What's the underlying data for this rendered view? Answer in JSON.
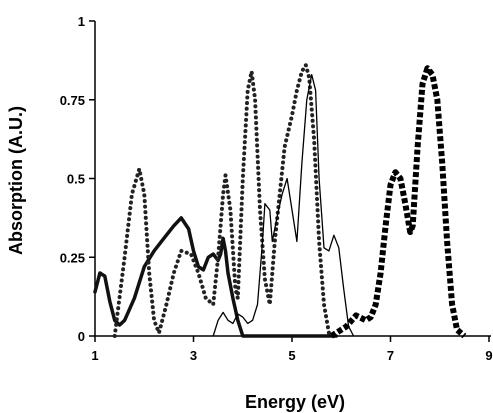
{
  "chart_data": {
    "type": "line",
    "title": "",
    "xlabel": "Energy (eV)",
    "ylabel": "Absorption (A.U.)",
    "xlim": [
      1,
      9
    ],
    "ylim": [
      0,
      1
    ],
    "x_ticks": [
      1,
      3,
      5,
      7,
      9
    ],
    "y_ticks": [
      0,
      0.25,
      0.5,
      0.75,
      1
    ],
    "x_tick_labels": [
      "1",
      "3",
      "5",
      "7",
      "9"
    ],
    "y_tick_labels": [
      "0",
      "0.25",
      "0.5",
      "0.75",
      "1"
    ],
    "grid": false,
    "legend": "none",
    "series": [
      {
        "style": "thick-line",
        "color": "#111111",
        "points": [
          [
            1.0,
            0.14
          ],
          [
            1.1,
            0.2
          ],
          [
            1.2,
            0.19
          ],
          [
            1.3,
            0.11
          ],
          [
            1.4,
            0.05
          ],
          [
            1.5,
            0.035
          ],
          [
            1.6,
            0.05
          ],
          [
            1.8,
            0.12
          ],
          [
            2.0,
            0.22
          ],
          [
            2.2,
            0.27
          ],
          [
            2.4,
            0.31
          ],
          [
            2.6,
            0.35
          ],
          [
            2.75,
            0.375
          ],
          [
            2.9,
            0.34
          ],
          [
            3.0,
            0.27
          ],
          [
            3.1,
            0.22
          ],
          [
            3.2,
            0.21
          ],
          [
            3.3,
            0.25
          ],
          [
            3.4,
            0.26
          ],
          [
            3.5,
            0.24
          ],
          [
            3.55,
            0.26
          ],
          [
            3.6,
            0.31
          ],
          [
            3.65,
            0.27
          ],
          [
            3.7,
            0.2
          ],
          [
            3.8,
            0.12
          ],
          [
            3.9,
            0.05
          ],
          [
            4.0,
            0.0
          ],
          [
            5.9,
            0.0
          ]
        ]
      },
      {
        "style": "dotted",
        "color": "#222222",
        "points": [
          [
            1.4,
            0.0
          ],
          [
            1.6,
            0.25
          ],
          [
            1.75,
            0.45
          ],
          [
            1.9,
            0.53
          ],
          [
            2.0,
            0.45
          ],
          [
            2.1,
            0.2
          ],
          [
            2.2,
            0.05
          ],
          [
            2.3,
            0.01
          ],
          [
            2.45,
            0.1
          ],
          [
            2.6,
            0.2
          ],
          [
            2.75,
            0.27
          ],
          [
            2.95,
            0.26
          ],
          [
            3.1,
            0.2
          ],
          [
            3.25,
            0.12
          ],
          [
            3.4,
            0.1
          ],
          [
            3.5,
            0.25
          ],
          [
            3.6,
            0.45
          ],
          [
            3.65,
            0.51
          ],
          [
            3.75,
            0.4
          ],
          [
            3.85,
            0.15
          ],
          [
            3.9,
            0.12
          ],
          [
            4.0,
            0.5
          ],
          [
            4.1,
            0.78
          ],
          [
            4.18,
            0.84
          ],
          [
            4.25,
            0.75
          ],
          [
            4.35,
            0.4
          ],
          [
            4.45,
            0.18
          ],
          [
            4.55,
            0.1
          ],
          [
            4.65,
            0.3
          ],
          [
            4.75,
            0.45
          ],
          [
            4.85,
            0.6
          ],
          [
            5.0,
            0.7
          ],
          [
            5.1,
            0.78
          ],
          [
            5.2,
            0.84
          ],
          [
            5.28,
            0.86
          ],
          [
            5.35,
            0.82
          ],
          [
            5.45,
            0.62
          ],
          [
            5.55,
            0.3
          ],
          [
            5.65,
            0.1
          ],
          [
            5.75,
            0.01
          ],
          [
            5.8,
            0.0
          ]
        ]
      },
      {
        "style": "thin-line",
        "color": "#000000",
        "points": [
          [
            3.4,
            0.0
          ],
          [
            3.5,
            0.05
          ],
          [
            3.6,
            0.075
          ],
          [
            3.7,
            0.05
          ],
          [
            3.8,
            0.04
          ],
          [
            3.9,
            0.07
          ],
          [
            4.0,
            0.06
          ],
          [
            4.1,
            0.04
          ],
          [
            4.2,
            0.05
          ],
          [
            4.3,
            0.1
          ],
          [
            4.4,
            0.3
          ],
          [
            4.45,
            0.42
          ],
          [
            4.55,
            0.4
          ],
          [
            4.6,
            0.3
          ],
          [
            4.7,
            0.38
          ],
          [
            4.8,
            0.45
          ],
          [
            4.9,
            0.5
          ],
          [
            5.0,
            0.4
          ],
          [
            5.1,
            0.3
          ],
          [
            5.2,
            0.55
          ],
          [
            5.3,
            0.75
          ],
          [
            5.4,
            0.83
          ],
          [
            5.48,
            0.78
          ],
          [
            5.55,
            0.5
          ],
          [
            5.65,
            0.28
          ],
          [
            5.75,
            0.27
          ],
          [
            5.85,
            0.32
          ],
          [
            5.95,
            0.28
          ],
          [
            6.05,
            0.15
          ],
          [
            6.15,
            0.03
          ],
          [
            6.25,
            0.0
          ]
        ]
      },
      {
        "style": "dashed-squares",
        "color": "#000000",
        "points": [
          [
            5.8,
            0.0
          ],
          [
            6.1,
            0.03
          ],
          [
            6.3,
            0.065
          ],
          [
            6.5,
            0.05
          ],
          [
            6.6,
            0.06
          ],
          [
            6.7,
            0.1
          ],
          [
            6.8,
            0.2
          ],
          [
            6.9,
            0.35
          ],
          [
            7.0,
            0.48
          ],
          [
            7.1,
            0.52
          ],
          [
            7.2,
            0.5
          ],
          [
            7.3,
            0.42
          ],
          [
            7.4,
            0.33
          ],
          [
            7.45,
            0.35
          ],
          [
            7.55,
            0.6
          ],
          [
            7.65,
            0.8
          ],
          [
            7.75,
            0.85
          ],
          [
            7.85,
            0.83
          ],
          [
            7.95,
            0.75
          ],
          [
            8.05,
            0.55
          ],
          [
            8.15,
            0.3
          ],
          [
            8.25,
            0.1
          ],
          [
            8.35,
            0.02
          ],
          [
            8.5,
            0.0
          ]
        ]
      }
    ]
  }
}
